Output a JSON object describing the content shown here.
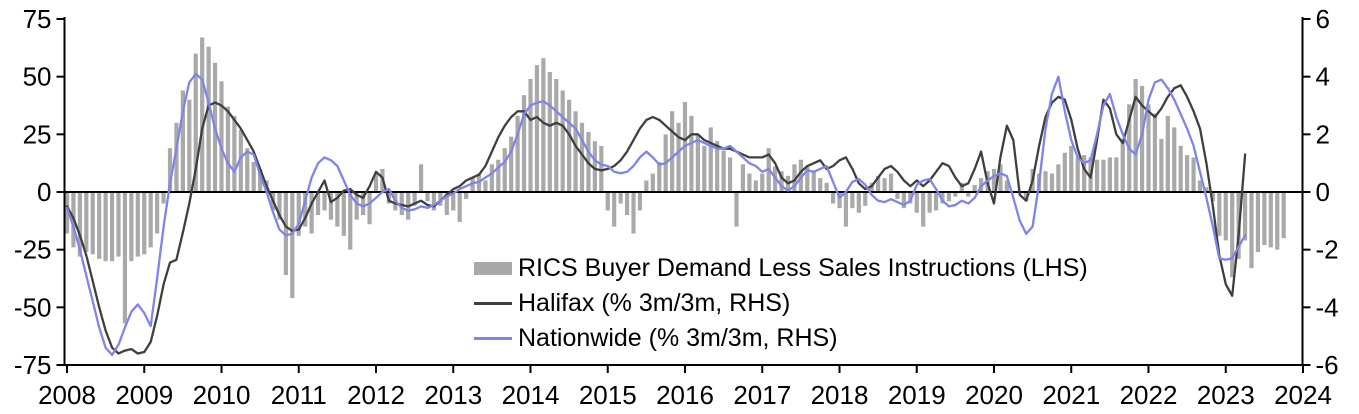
{
  "chart_data": {
    "type": "bar",
    "subtype": "combo-bar-line-dual-axis",
    "title": "",
    "xlabel": "",
    "ylabel_left": "",
    "ylabel_right": "",
    "x_start": "2008-01",
    "x_frequency": "monthly",
    "x_tick_labels": [
      "2008",
      "2009",
      "2010",
      "2011",
      "2012",
      "2013",
      "2014",
      "2015",
      "2016",
      "2017",
      "2018",
      "2019",
      "2020",
      "2021",
      "2022",
      "2023",
      "2024"
    ],
    "left_axis": {
      "min": -75,
      "max": 75,
      "ticks": [
        75,
        50,
        25,
        0,
        -25,
        -50,
        -75
      ]
    },
    "right_axis": {
      "min": -6,
      "max": 6,
      "ticks": [
        6,
        4,
        2,
        0,
        -2,
        -4,
        -6
      ]
    },
    "grid": "off",
    "legend_position": "inside-lower-center",
    "colors": {
      "bars": "#a9a9a9",
      "halifax": "#3f3f3f",
      "nationwide": "#8084e8",
      "axis": "#000000"
    },
    "series": [
      {
        "name": "RICS Buyer Demand Less Sales Instructions (LHS)",
        "type": "bar",
        "axis": "left",
        "color": "#a9a9a9",
        "values": [
          -18,
          -24,
          -28,
          -26,
          -27,
          -29,
          -30,
          -30,
          -28,
          -57,
          -30,
          -28,
          -27,
          -24,
          -18,
          -5,
          19,
          30,
          44,
          40,
          60,
          67,
          63,
          56,
          48,
          37,
          33,
          27,
          19,
          13,
          10,
          5,
          -8,
          -12,
          -36,
          -46,
          -19,
          -15,
          -18,
          -10,
          -8,
          -12,
          -15,
          -19,
          -25,
          -12,
          -10,
          -14,
          8,
          10,
          -5,
          -8,
          -10,
          -12,
          -6,
          12,
          -4,
          -8,
          -6,
          -10,
          -8,
          -13,
          -3,
          6,
          8,
          5,
          12,
          14,
          19,
          24,
          33,
          42,
          49,
          55,
          58,
          52,
          49,
          44,
          40,
          35,
          30,
          26,
          22,
          20,
          -8,
          -15,
          -5,
          -10,
          -18,
          -8,
          5,
          8,
          13,
          25,
          35,
          30,
          39,
          33,
          25,
          20,
          28,
          22,
          18,
          15,
          -15,
          12,
          8,
          5,
          8,
          19,
          11,
          9,
          7,
          12,
          14,
          11,
          9,
          6,
          4,
          -5,
          -7,
          -15,
          -7,
          -9,
          -6,
          4,
          7,
          6,
          8,
          -3,
          -7,
          -5,
          -9,
          -15,
          -9,
          -8,
          -5,
          -4,
          -2,
          4,
          -2,
          3,
          6,
          9,
          10,
          12,
          5,
          null,
          null,
          -4,
          10,
          8,
          9,
          8,
          12,
          17,
          20,
          15,
          16,
          15,
          14,
          14,
          15,
          15,
          23,
          38,
          49,
          46,
          38,
          34,
          23,
          33,
          28,
          20,
          16,
          15,
          5,
          2,
          -4,
          -19,
          -21,
          -37,
          -29,
          -21,
          -33,
          -26,
          -23,
          -24,
          -25,
          -20
        ]
      },
      {
        "name": "Halifax (% 3m/3m, RHS)",
        "type": "line",
        "axis": "right",
        "color": "#3f3f3f",
        "values": [
          -0.5,
          -0.9,
          -1.5,
          -2.2,
          -3.1,
          -4.0,
          -4.8,
          -5.4,
          -5.6,
          -5.5,
          -5.45,
          -5.6,
          -5.55,
          -5.2,
          -4.3,
          -3.2,
          -2.45,
          -2.35,
          -1.4,
          -0.4,
          0.8,
          2.2,
          3.0,
          3.1,
          3.0,
          2.8,
          2.5,
          2.2,
          1.8,
          1.4,
          0.8,
          0.2,
          -0.3,
          -0.8,
          -1.2,
          -1.35,
          -1.3,
          -0.9,
          -0.4,
          0.0,
          0.4,
          -0.35,
          -0.2,
          0.05,
          0.1,
          -0.1,
          -0.2,
          0.2,
          0.7,
          0.5,
          -0.3,
          -0.4,
          -0.45,
          -0.5,
          -0.4,
          -0.3,
          -0.45,
          -0.5,
          -0.3,
          -0.1,
          0.1,
          0.2,
          0.4,
          0.5,
          0.6,
          0.9,
          1.4,
          1.9,
          2.3,
          2.6,
          2.8,
          2.8,
          2.5,
          2.6,
          2.4,
          2.3,
          2.4,
          2.3,
          2.0,
          1.6,
          1.3,
          1.0,
          0.8,
          0.75,
          0.8,
          0.9,
          1.1,
          1.4,
          1.8,
          2.2,
          2.5,
          2.6,
          2.5,
          2.3,
          2.1,
          1.9,
          1.8,
          2.0,
          2.0,
          1.8,
          1.7,
          1.6,
          1.5,
          1.5,
          1.4,
          1.3,
          1.2,
          1.2,
          1.2,
          1.3,
          1.0,
          0.5,
          0.3,
          0.4,
          0.7,
          0.9,
          1.0,
          1.1,
          0.8,
          0.9,
          1.1,
          1.2,
          0.8,
          0.3,
          0.1,
          0.2,
          0.5,
          0.8,
          0.9,
          0.7,
          0.4,
          0.2,
          0.4,
          0.2,
          0.4,
          0.7,
          1.0,
          0.9,
          0.5,
          0.2,
          0.3,
          0.8,
          1.4,
          0.3,
          -0.4,
          1.2,
          2.3,
          1.8,
          -0.1,
          -0.3,
          0.4,
          1.6,
          2.6,
          3.1,
          3.3,
          3.2,
          2.5,
          1.5,
          0.8,
          0.5,
          1.8,
          3.2,
          2.9,
          2.0,
          1.7,
          2.5,
          3.3,
          3.0,
          2.8,
          2.6,
          2.9,
          3.3,
          3.6,
          3.7,
          3.3,
          2.8,
          2.2,
          1.0,
          -0.5,
          -2.2,
          -3.2,
          -3.6,
          -1.5,
          1.3
        ]
      },
      {
        "name": "Nationwide (% 3m/3m, RHS)",
        "type": "line",
        "axis": "right",
        "color": "#8084e8",
        "values": [
          -0.55,
          -1.2,
          -2.0,
          -2.9,
          -3.8,
          -4.7,
          -5.4,
          -5.65,
          -5.3,
          -4.7,
          -4.15,
          -3.9,
          -4.2,
          -4.65,
          -3.0,
          -1.2,
          0.3,
          1.5,
          2.8,
          3.8,
          4.1,
          3.9,
          3.1,
          2.2,
          1.5,
          1.0,
          0.7,
          1.2,
          1.4,
          1.3,
          0.6,
          0.0,
          -0.7,
          -1.3,
          -1.5,
          -1.45,
          -1.1,
          -0.3,
          0.5,
          1.0,
          1.2,
          1.1,
          0.9,
          0.4,
          -0.1,
          -0.4,
          -0.5,
          -0.4,
          -0.2,
          0.0,
          0.1,
          -0.3,
          -0.55,
          -0.65,
          -0.6,
          -0.5,
          -0.55,
          -0.45,
          -0.3,
          -0.15,
          -0.05,
          0.1,
          0.2,
          0.3,
          0.35,
          0.5,
          0.65,
          0.85,
          1.05,
          1.4,
          2.0,
          2.7,
          3.0,
          3.1,
          3.15,
          3.0,
          2.8,
          2.6,
          2.4,
          2.2,
          1.8,
          1.4,
          1.1,
          0.95,
          0.9,
          0.7,
          0.65,
          0.7,
          0.9,
          1.2,
          1.4,
          1.2,
          0.95,
          1.0,
          1.2,
          1.4,
          1.6,
          1.7,
          1.8,
          1.7,
          1.6,
          1.5,
          1.5,
          1.6,
          1.4,
          1.2,
          1.0,
          0.9,
          0.7,
          0.8,
          0.5,
          0.2,
          0.05,
          0.2,
          0.5,
          0.75,
          0.7,
          0.8,
          0.9,
          0.35,
          -0.2,
          0.0,
          0.35,
          0.45,
          0.25,
          -0.1,
          -0.3,
          -0.35,
          -0.25,
          -0.35,
          -0.45,
          -0.3,
          0.25,
          0.4,
          0.45,
          0.1,
          -0.3,
          -0.5,
          -0.45,
          -0.3,
          -0.4,
          -0.2,
          0.2,
          0.4,
          0.55,
          0.65,
          0.55,
          -0.2,
          -1.0,
          -1.45,
          -1.2,
          0.3,
          2.2,
          3.4,
          4.0,
          2.8,
          1.8,
          1.2,
          1.0,
          1.1,
          2.0,
          3.0,
          3.4,
          2.6,
          2.0,
          1.5,
          1.3,
          2.0,
          3.2,
          3.8,
          3.9,
          3.6,
          3.2,
          2.7,
          2.2,
          1.6,
          0.7,
          -0.2,
          -1.2,
          -2.3,
          -2.35,
          -2.3,
          -1.9,
          -1.5
        ]
      }
    ]
  }
}
